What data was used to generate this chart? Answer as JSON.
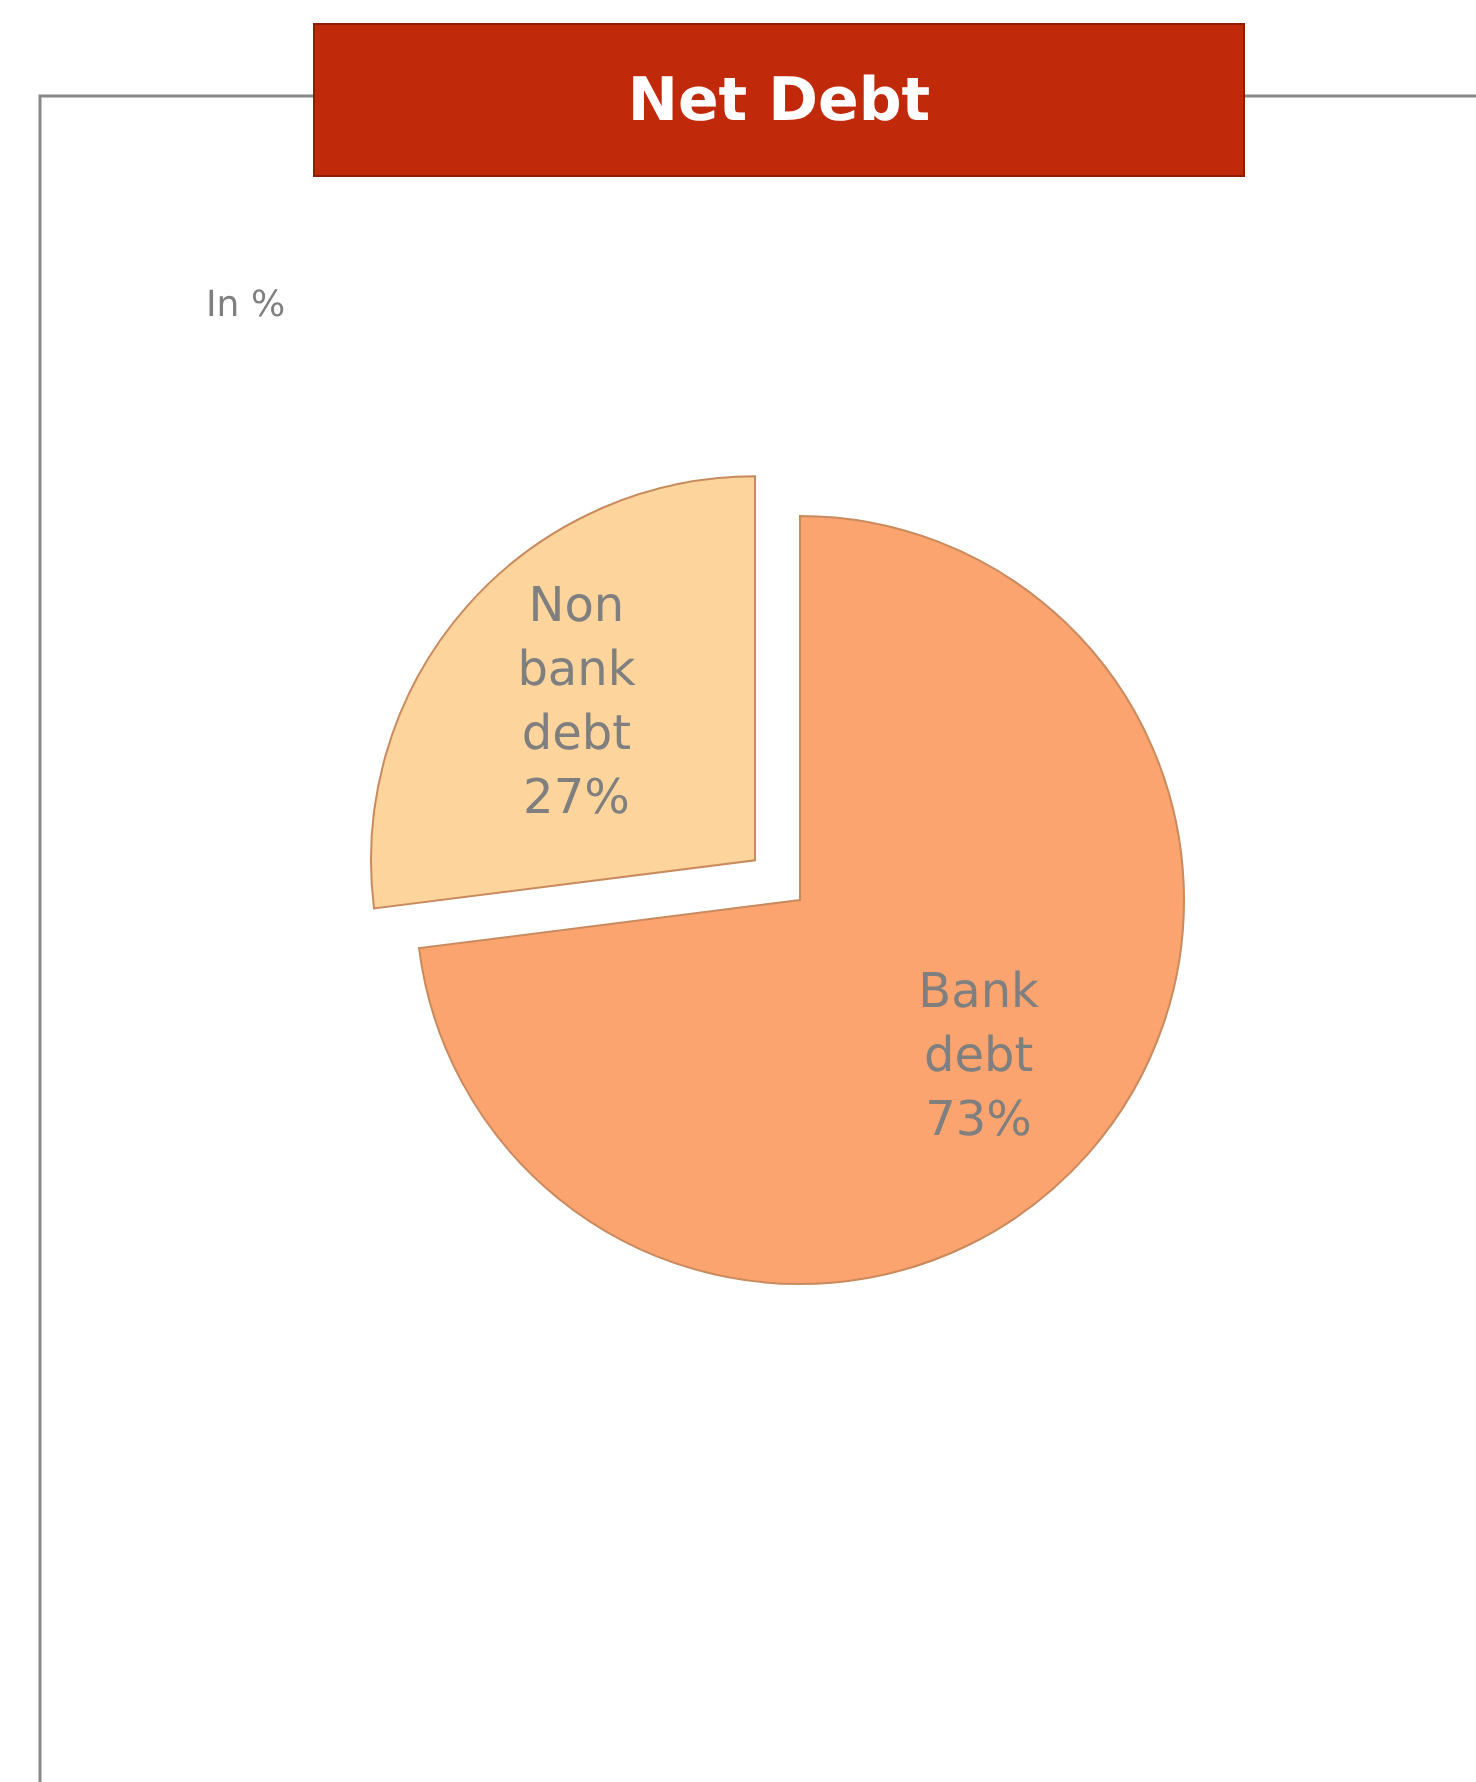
{
  "chart_data": {
    "type": "pie",
    "title": "Net Debt",
    "subtitle": "In %",
    "categories": [
      "Bank debt",
      "Non bank debt"
    ],
    "values": [
      73,
      27
    ],
    "colors": [
      "#fba46f",
      "#fdd59c"
    ],
    "value_labels": [
      "73%",
      "27%"
    ]
  }
}
